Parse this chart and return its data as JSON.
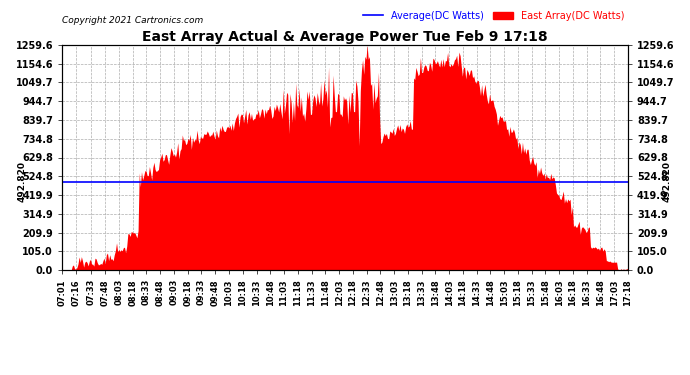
{
  "title": "East Array Actual & Average Power Tue Feb 9 17:18",
  "copyright": "Copyright 2021 Cartronics.com",
  "legend_average": "Average(DC Watts)",
  "legend_east": "East Array(DC Watts)",
  "left_label": "492.820",
  "right_label": "492.820",
  "average_value": 492.82,
  "y_max": 1259.6,
  "y_ticks": [
    0.0,
    105.0,
    209.9,
    314.9,
    419.9,
    524.8,
    629.8,
    734.8,
    839.7,
    944.7,
    1049.7,
    1154.6,
    1259.6
  ],
  "y_tick_labels": [
    "0.0",
    "105.0",
    "209.9",
    "314.9",
    "419.9",
    "524.8",
    "629.8",
    "734.8",
    "839.7",
    "944.7",
    "1049.7",
    "1154.6",
    "1259.6"
  ],
  "background_color": "#ffffff",
  "fill_color": "#ff0000",
  "grid_color": "#999999",
  "average_line_color": "#0000ff",
  "x_tick_labels": [
    "07:01",
    "07:16",
    "07:33",
    "07:48",
    "08:03",
    "08:18",
    "08:33",
    "08:48",
    "09:03",
    "09:18",
    "09:33",
    "09:48",
    "10:03",
    "10:18",
    "10:33",
    "10:48",
    "11:03",
    "11:18",
    "11:33",
    "11:48",
    "12:03",
    "12:18",
    "12:33",
    "12:48",
    "13:03",
    "13:18",
    "13:33",
    "13:48",
    "14:03",
    "14:18",
    "14:33",
    "14:48",
    "15:03",
    "15:18",
    "15:33",
    "15:48",
    "16:03",
    "16:18",
    "16:33",
    "16:48",
    "17:03",
    "17:18"
  ]
}
